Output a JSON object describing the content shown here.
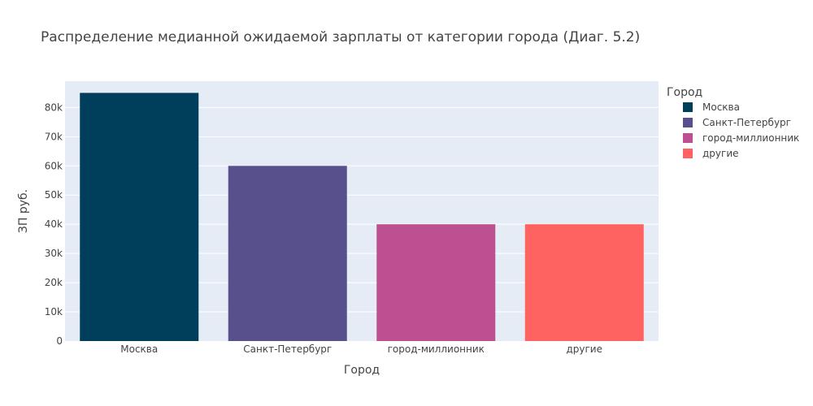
{
  "chart_data": {
    "type": "bar",
    "title": "Распределение медианной ожидаемой зарплаты от категории города (Диаг. 5.2)",
    "xlabel": "Город",
    "ylabel": "ЗП руб.",
    "categories": [
      "Москва",
      "Санкт-Петербург",
      "город-миллионник",
      "другие"
    ],
    "values": [
      85000,
      60000,
      40000,
      40000
    ],
    "colors": [
      "#003f5c",
      "#58508d",
      "#bc5090",
      "#ff6361"
    ],
    "ylim": [
      0,
      89000
    ],
    "yticks": [
      0,
      10000,
      20000,
      30000,
      40000,
      50000,
      60000,
      70000,
      80000
    ],
    "ytick_labels": [
      "0",
      "10k",
      "20k",
      "30k",
      "40k",
      "50k",
      "60k",
      "70k",
      "80k"
    ],
    "legend": {
      "title": "Город",
      "entries": [
        "Москва",
        "Санкт-Петербург",
        "город-миллионник",
        "другие"
      ],
      "placement": "right"
    },
    "grid": true,
    "plot_background": "#e5ecf6"
  }
}
